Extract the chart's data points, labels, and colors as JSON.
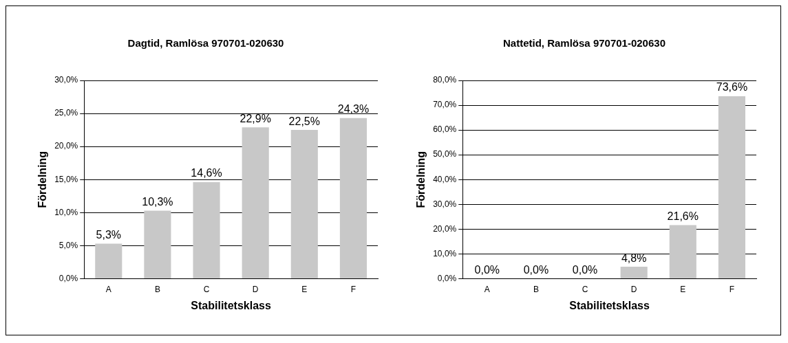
{
  "chart_data": [
    {
      "type": "bar",
      "title": "Dagtid, Ramlösa 970701-020630",
      "xlabel": "Stabilitetsklass",
      "ylabel": "Fördelning",
      "categories": [
        "A",
        "B",
        "C",
        "D",
        "E",
        "F"
      ],
      "values": [
        5.3,
        10.3,
        14.6,
        22.9,
        22.5,
        24.3
      ],
      "value_labels": [
        "5,3%",
        "10,3%",
        "14,6%",
        "22,9%",
        "22,5%",
        "24,3%"
      ],
      "color": "#c8c8c8",
      "ylim": [
        0,
        30
      ],
      "yticks": [
        {
          "value": 0,
          "label": "0,0%"
        },
        {
          "value": 5,
          "label": "5,0%"
        },
        {
          "value": 10,
          "label": "10,0%"
        },
        {
          "value": 15,
          "label": "15,0%"
        },
        {
          "value": 20,
          "label": "20,0%"
        },
        {
          "value": 25,
          "label": "25,0%"
        },
        {
          "value": 30,
          "label": "30,0%"
        }
      ],
      "grid": "y",
      "legend": false
    },
    {
      "type": "bar",
      "title": "Nattetid, Ramlösa 970701-020630",
      "xlabel": "Stabilitetsklass",
      "ylabel": "Fördelning",
      "categories": [
        "A",
        "B",
        "C",
        "D",
        "E",
        "F"
      ],
      "values": [
        0,
        0,
        0,
        4.8,
        21.6,
        73.6
      ],
      "value_labels": [
        "0,0%",
        "0,0%",
        "0,0%",
        "4,8%",
        "21,6%",
        "73,6%"
      ],
      "color": "#c8c8c8",
      "ylim": [
        0,
        80
      ],
      "yticks": [
        {
          "value": 0,
          "label": "0,0%"
        },
        {
          "value": 10,
          "label": "10,0%"
        },
        {
          "value": 20,
          "label": "20,0%"
        },
        {
          "value": 30,
          "label": "30,0%"
        },
        {
          "value": 40,
          "label": "40,0%"
        },
        {
          "value": 50,
          "label": "50,0%"
        },
        {
          "value": 60,
          "label": "60,0%"
        },
        {
          "value": 70,
          "label": "70,0%"
        },
        {
          "value": 80,
          "label": "80,0%"
        }
      ],
      "grid": "y",
      "legend": false
    }
  ]
}
